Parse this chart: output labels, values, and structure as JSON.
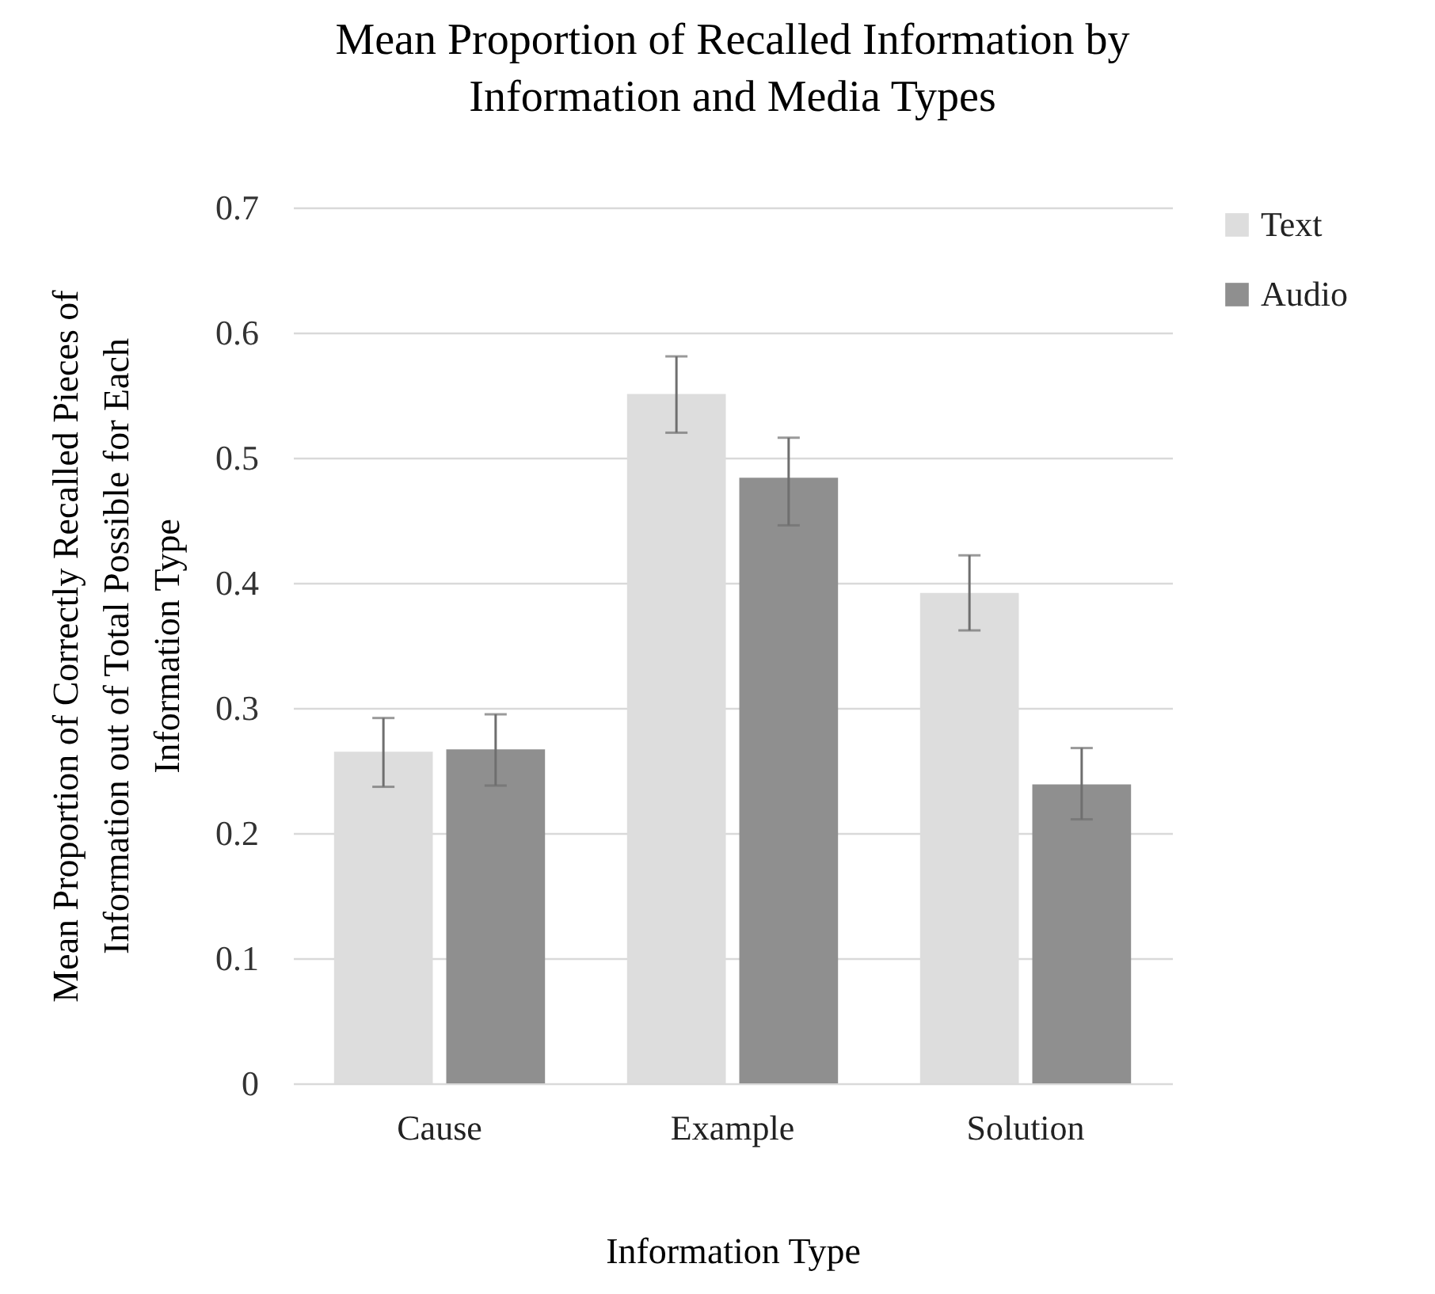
{
  "chart_data": {
    "type": "bar",
    "title": "Mean Proportion of Recalled Information by\nInformation and Media Types",
    "xlabel": "Information Type",
    "ylabel": "Mean Proportion of Correctly Recalled Pieces of\nInformation out of Total Possible for Each\nInformation Type",
    "categories": [
      "Cause",
      "Example",
      "Solution"
    ],
    "series": [
      {
        "name": "Text",
        "color": "#dddddd",
        "values": [
          0.265,
          0.551,
          0.392
        ],
        "errors": [
          [
            0.237,
            0.292
          ],
          [
            0.52,
            0.581
          ],
          [
            0.362,
            0.422
          ]
        ]
      },
      {
        "name": "Audio",
        "color": "#8f8f8f",
        "values": [
          0.267,
          0.484,
          0.239
        ],
        "errors": [
          [
            0.238,
            0.295
          ],
          [
            0.446,
            0.516
          ],
          [
            0.211,
            0.268
          ]
        ]
      }
    ],
    "ylim": [
      0,
      0.7
    ],
    "yticks": [
      0,
      0.1,
      0.2,
      0.3,
      0.4,
      0.5,
      0.6,
      0.7
    ],
    "grid": "y",
    "legend": "right"
  }
}
